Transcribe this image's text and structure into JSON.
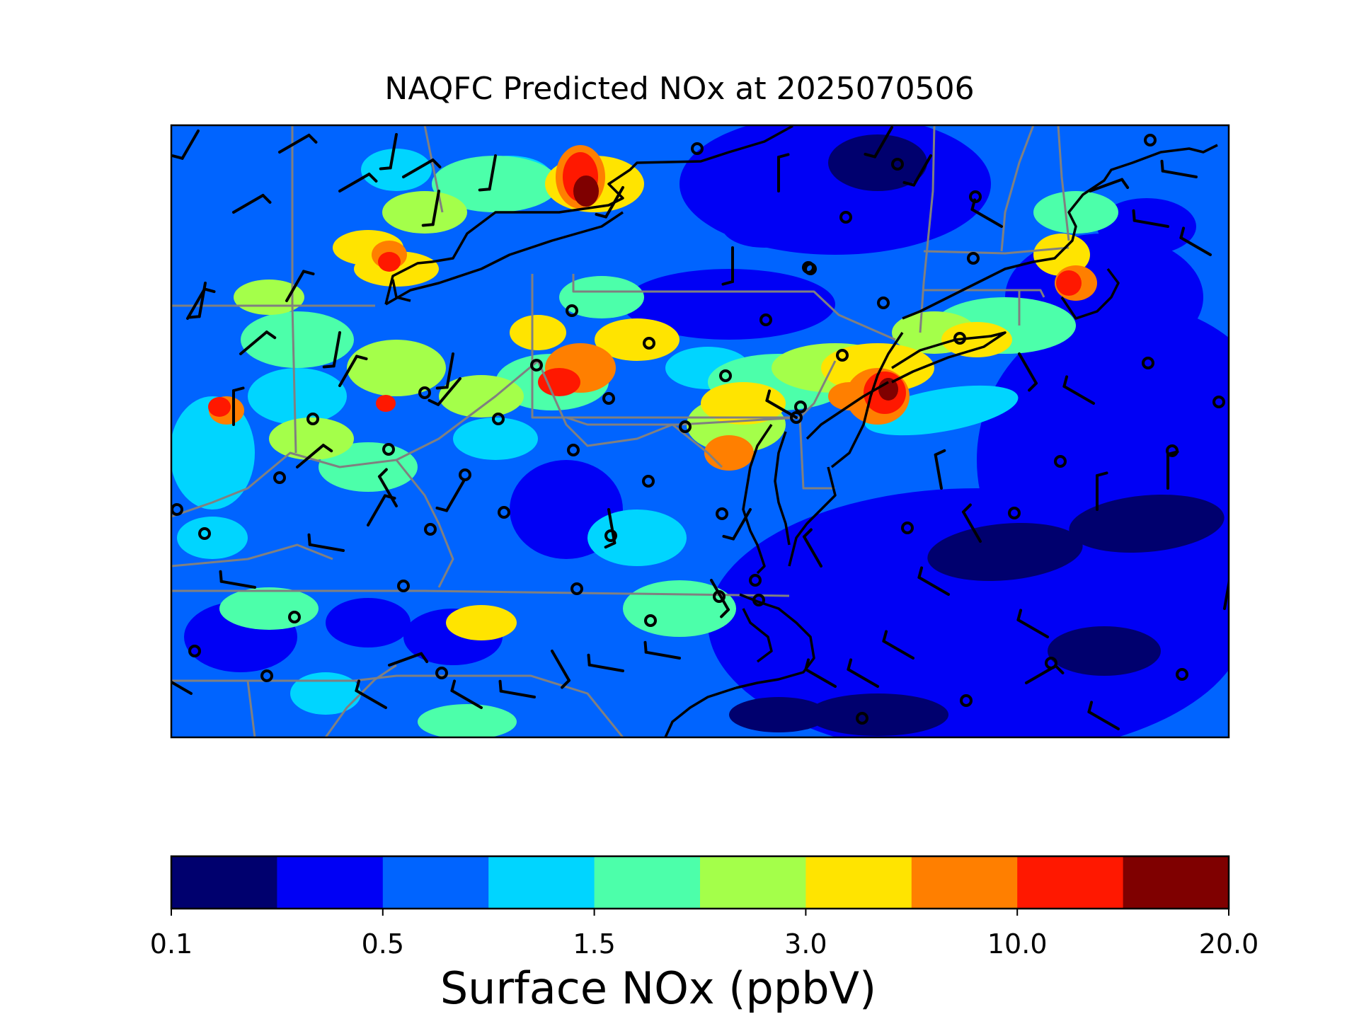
{
  "title": "NAQFC Predicted NOx at 2025070506",
  "colorbar": {
    "label": "Surface NOx (ppbV)",
    "tick_labels": [
      "0.1",
      "0.5",
      "1.5",
      "3.0",
      "10.0",
      "20.0"
    ],
    "colors": [
      "#00006e",
      "#0000f5",
      "#0064ff",
      "#00d5ff",
      "#4cffaa",
      "#a4ff4a",
      "#ffe400",
      "#ff7f00",
      "#ff1800",
      "#7f0000"
    ]
  },
  "colors": {
    "state_borders": "#808080",
    "coastlines": "#000000",
    "wind_barbs": "#000000"
  },
  "map": {
    "variable": "Surface NOx",
    "features": [
      "state-borders",
      "coastline",
      "great-lakes-shoreline",
      "wind-barbs",
      "calm-wind-circles"
    ]
  }
}
